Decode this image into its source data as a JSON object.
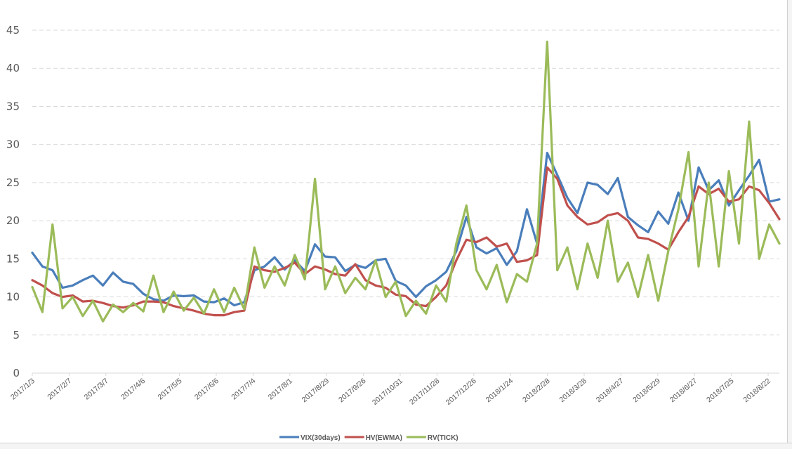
{
  "chart_data": {
    "type": "line",
    "title": "",
    "xlabel": "",
    "ylabel": "",
    "ylim": [
      0,
      45
    ],
    "yticks": [
      0,
      5,
      10,
      15,
      20,
      25,
      30,
      35,
      40,
      45
    ],
    "grid": true,
    "legend_position": "bottom",
    "x_tick_labels": [
      "2017/1/3",
      "2017/2/7",
      "2017/3/7",
      "2017/4/6",
      "2017/5/5",
      "2017/6/6",
      "2017/7/4",
      "2017/8/1",
      "2017/8/29",
      "2017/9/26",
      "2017/10/31",
      "2017/11/28",
      "2017/12/26",
      "2018/1/24",
      "2018/2/28",
      "2018/3/28",
      "2018/4/27",
      "2018/5/29",
      "2018/6/27",
      "2018/7/25",
      "2018/8/22"
    ],
    "series": [
      {
        "name": "VIX(30days)",
        "color": "#4a7ebb",
        "values": [
          15.8,
          14.0,
          13.5,
          11.2,
          11.5,
          12.2,
          12.8,
          11.5,
          13.2,
          12.0,
          11.7,
          10.4,
          9.7,
          9.5,
          10.2,
          10.1,
          10.2,
          9.4,
          9.3,
          9.8,
          8.9,
          9.3,
          13.5,
          14.0,
          15.2,
          13.6,
          14.8,
          13.4,
          16.9,
          15.3,
          15.2,
          13.4,
          14.2,
          13.8,
          14.8,
          15.0,
          12.1,
          11.5,
          10.0,
          11.4,
          12.2,
          13.3,
          16.0,
          20.5,
          16.5,
          15.7,
          16.4,
          14.2,
          16.0,
          21.5,
          17.0,
          28.9,
          26.0,
          23.0,
          21.0,
          25.0,
          24.7,
          23.5,
          25.6,
          20.5,
          19.4,
          18.5,
          21.2,
          19.6,
          23.7,
          20.0,
          27.0,
          24.0,
          25.3,
          22.0,
          24.0,
          25.9,
          28.0,
          22.5,
          22.8
        ]
      },
      {
        "name": "HV(EWMA)",
        "color": "#c0504d",
        "values": [
          12.2,
          11.5,
          10.5,
          10.0,
          10.2,
          9.4,
          9.5,
          9.2,
          8.8,
          8.6,
          8.9,
          9.4,
          9.4,
          9.3,
          8.8,
          8.5,
          8.2,
          7.8,
          7.6,
          7.6,
          8.0,
          8.2,
          14.0,
          13.5,
          13.3,
          13.8,
          14.5,
          13.0,
          14.0,
          13.6,
          13.0,
          12.8,
          14.3,
          12.2,
          11.5,
          11.2,
          10.3,
          10.1,
          9.0,
          8.8,
          10.0,
          11.5,
          14.8,
          17.5,
          17.2,
          17.8,
          16.6,
          17.0,
          14.6,
          14.8,
          15.5,
          27.0,
          25.5,
          22.0,
          20.5,
          19.5,
          19.8,
          20.7,
          21.0,
          20.0,
          17.8,
          17.6,
          17.0,
          16.2,
          18.5,
          20.5,
          24.5,
          23.5,
          24.2,
          22.5,
          22.8,
          24.5,
          24.0,
          22.3,
          20.2
        ]
      },
      {
        "name": "RV(TICK)",
        "color": "#9bbb59",
        "values": [
          11.3,
          8.0,
          19.5,
          8.5,
          10.0,
          7.5,
          9.5,
          6.8,
          9.0,
          8.0,
          9.2,
          8.1,
          12.8,
          8.0,
          10.7,
          8.2,
          9.9,
          7.8,
          11.0,
          8.0,
          11.2,
          8.4,
          16.5,
          11.2,
          14.0,
          11.5,
          15.5,
          12.3,
          25.5,
          11.0,
          14.0,
          10.5,
          12.5,
          11.0,
          14.8,
          10.0,
          12.0,
          7.5,
          9.5,
          7.8,
          11.5,
          9.4,
          17.0,
          22.0,
          13.5,
          11.0,
          14.2,
          9.3,
          13.0,
          12.0,
          17.0,
          43.5,
          13.5,
          16.5,
          11.0,
          17.0,
          12.5,
          20.0,
          12.0,
          14.5,
          10.0,
          15.5,
          9.5,
          16.0,
          21.5,
          29.0,
          14.0,
          25.0,
          14.0,
          26.5,
          17.0,
          33.0,
          15.0,
          19.5,
          17.0
        ]
      }
    ]
  }
}
